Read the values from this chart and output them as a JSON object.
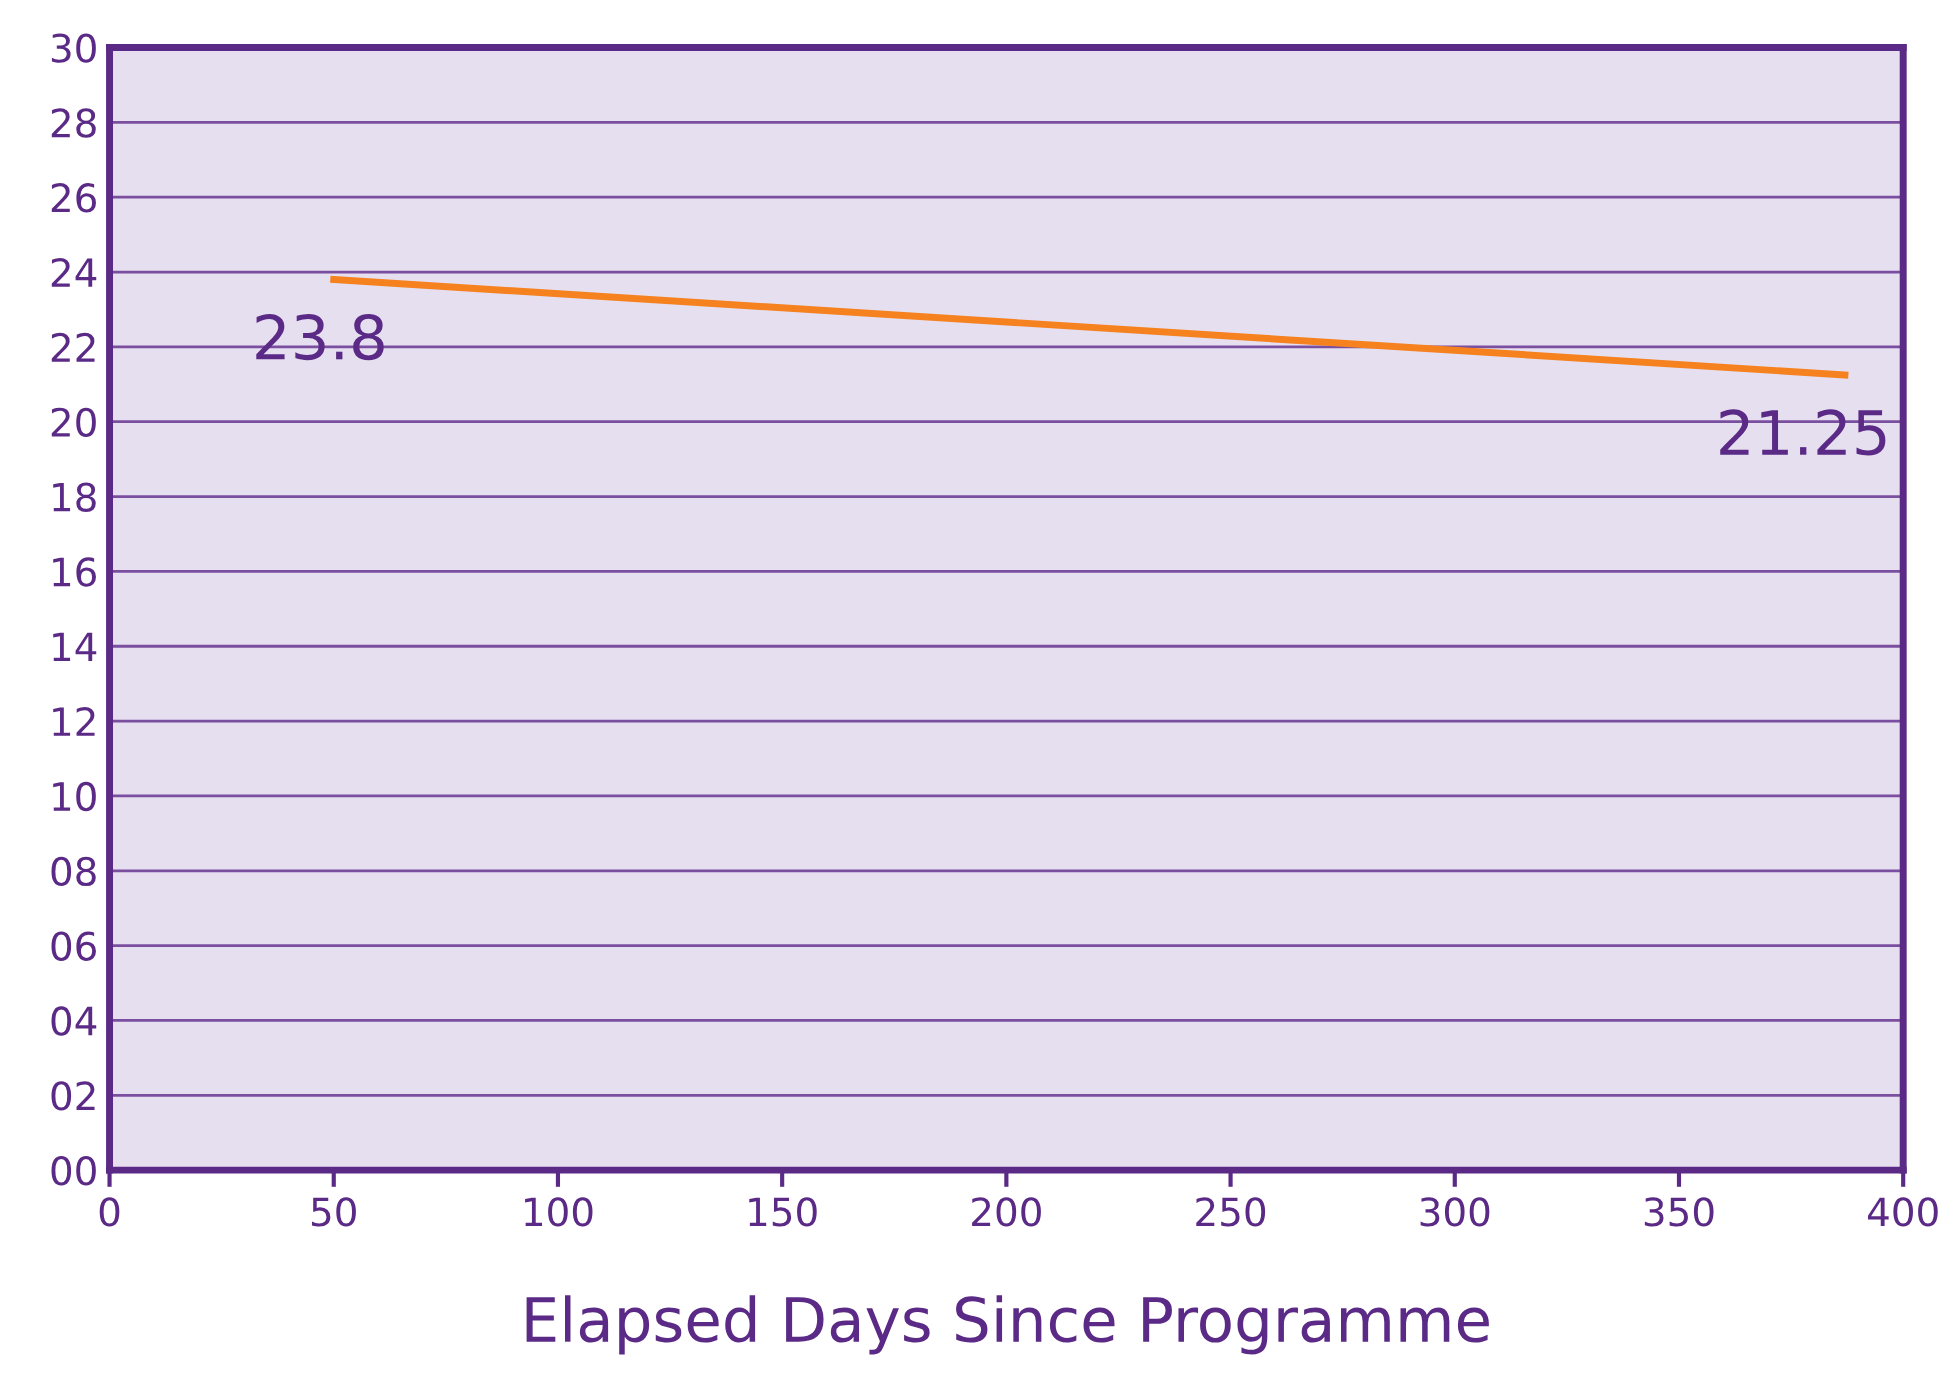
{
  "chart_data": {
    "type": "line",
    "xlabel": "Elapsed Days Since Programme",
    "series": [
      {
        "color": "#f5821f",
        "x": [
          50,
          387
        ],
        "values": [
          23.8,
          21.25
        ],
        "value_labels": [
          "23.8",
          "21.25"
        ]
      }
    ],
    "xlim": [
      0,
      400
    ],
    "xticks": [
      0,
      50,
      100,
      150,
      200,
      250,
      300,
      350,
      400
    ],
    "ylim": [
      0,
      30
    ],
    "yticks": [
      {
        "value": 0,
        "label": "00"
      },
      {
        "value": 2,
        "label": "02"
      },
      {
        "value": 4,
        "label": "04"
      },
      {
        "value": 6,
        "label": "06"
      },
      {
        "value": 8,
        "label": "08"
      },
      10,
      12,
      14,
      16,
      18,
      20,
      22,
      24,
      26,
      28,
      30
    ],
    "grid": "y",
    "marker": "none",
    "line_style": "solid"
  }
}
